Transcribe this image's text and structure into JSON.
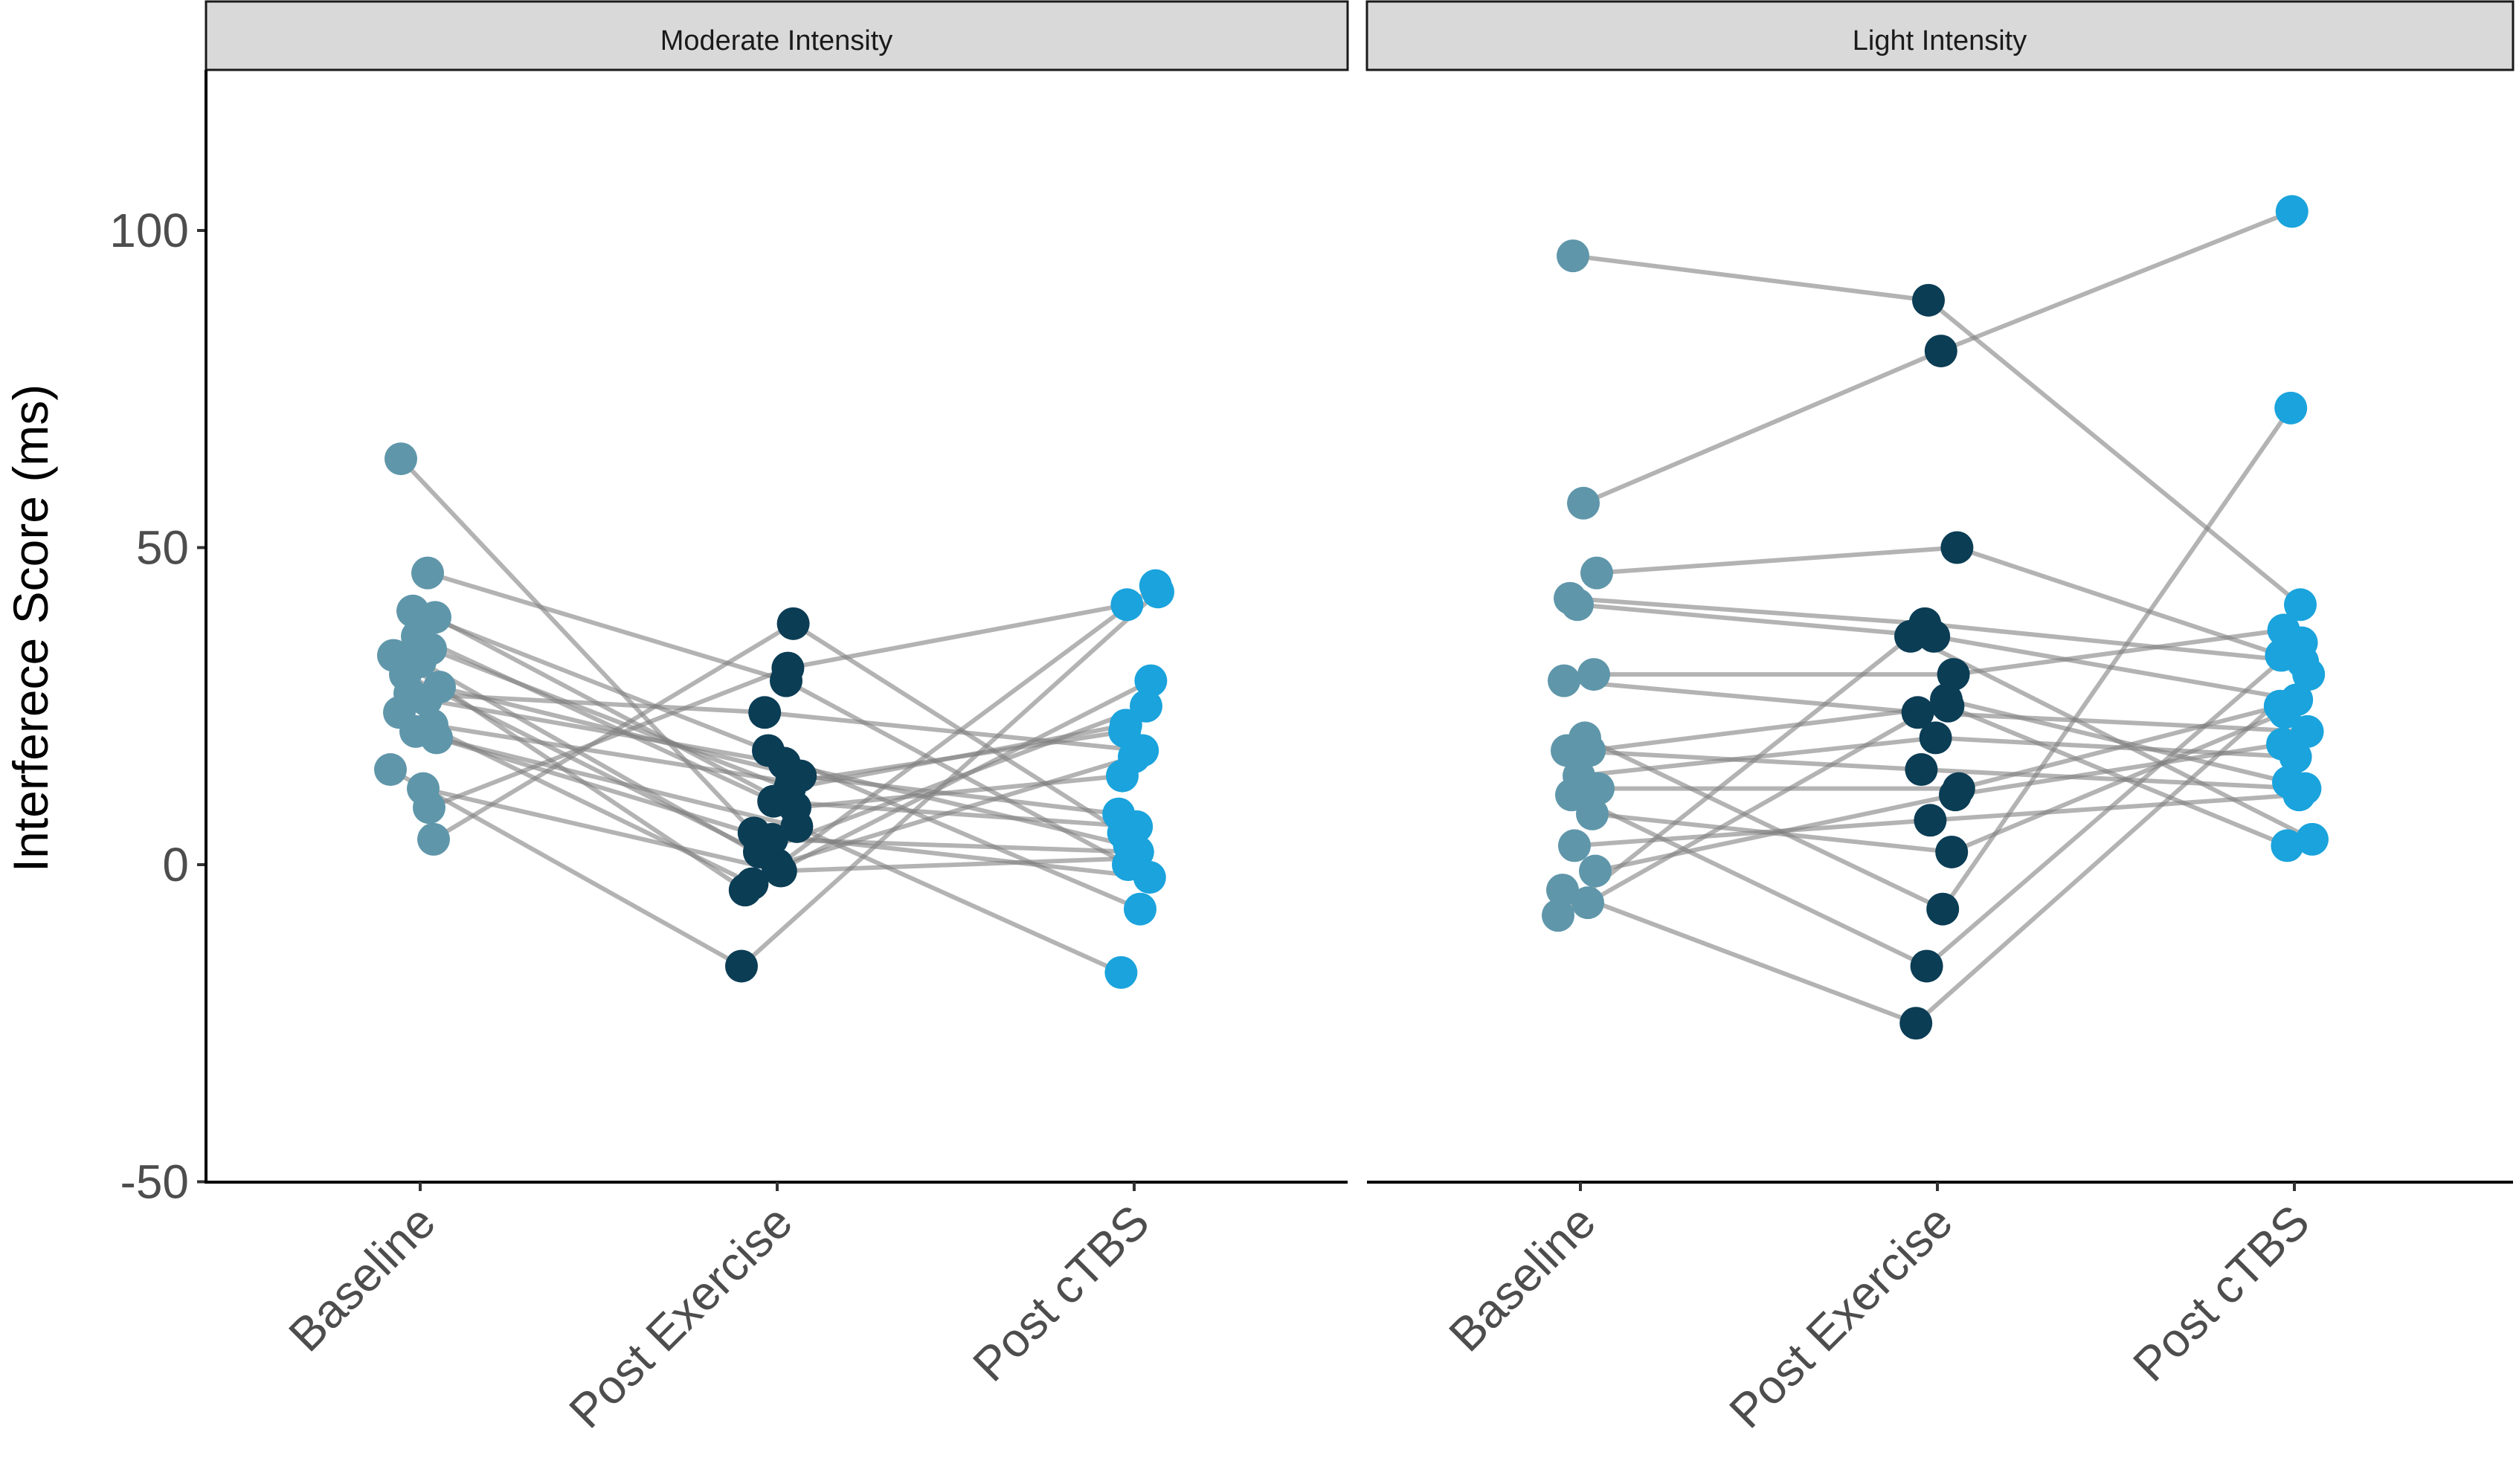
{
  "chart_data": {
    "type": "scatter",
    "subtype": "paired dot plot with connecting lines, faceted",
    "ylabel": "Interferece Score (ms)",
    "xlabel": "",
    "ylim": [
      -50,
      125
    ],
    "yticks": [
      -50,
      0,
      50,
      100
    ],
    "categories": [
      "Baseline",
      "Post Exercise",
      "Post cTBS"
    ],
    "colors": {
      "Baseline": "#5f96aa",
      "Post Exercise": "#0b3d55",
      "Post cTBS": "#1aa3dc",
      "line": "#808080",
      "strip": "#d9d9d9"
    },
    "facets": [
      {
        "title": "Moderate Intensity",
        "subjects": [
          [
            64,
            5,
            -2
          ],
          [
            46,
            29,
            0
          ],
          [
            40,
            18,
            -7
          ],
          [
            39,
            9,
            14
          ],
          [
            36,
            10,
            6
          ],
          [
            34,
            12,
            22
          ],
          [
            33,
            -4,
            44
          ],
          [
            32,
            0,
            17
          ],
          [
            30,
            2,
            25
          ],
          [
            28,
            14,
            8
          ],
          [
            27,
            24,
            18
          ],
          [
            26,
            16,
            3
          ],
          [
            24,
            -3,
            29
          ],
          [
            22,
            13,
            21
          ],
          [
            21,
            4,
            2
          ],
          [
            20,
            6,
            -17
          ],
          [
            15,
            -16,
            43
          ],
          [
            12,
            -1,
            1
          ],
          [
            9,
            31,
            41
          ],
          [
            4,
            38,
            5
          ]
        ]
      },
      {
        "title": "Light Intensity",
        "subjects": [
          [
            96,
            89,
            41
          ],
          [
            57,
            81,
            103
          ],
          [
            46,
            50,
            33
          ],
          [
            42,
            38,
            32
          ],
          [
            41,
            36,
            26
          ],
          [
            30,
            30,
            37
          ],
          [
            29,
            24,
            21
          ],
          [
            20,
            -7,
            72
          ],
          [
            18,
            15,
            12
          ],
          [
            18,
            25,
            3
          ],
          [
            14,
            20,
            17
          ],
          [
            12,
            12,
            25
          ],
          [
            11,
            -16,
            35
          ],
          [
            8,
            2,
            24
          ],
          [
            3,
            7,
            11
          ],
          [
            -1,
            11,
            19
          ],
          [
            -4,
            -25,
            30
          ],
          [
            -6,
            26,
            13
          ],
          [
            -8,
            36,
            4
          ]
        ]
      }
    ]
  }
}
